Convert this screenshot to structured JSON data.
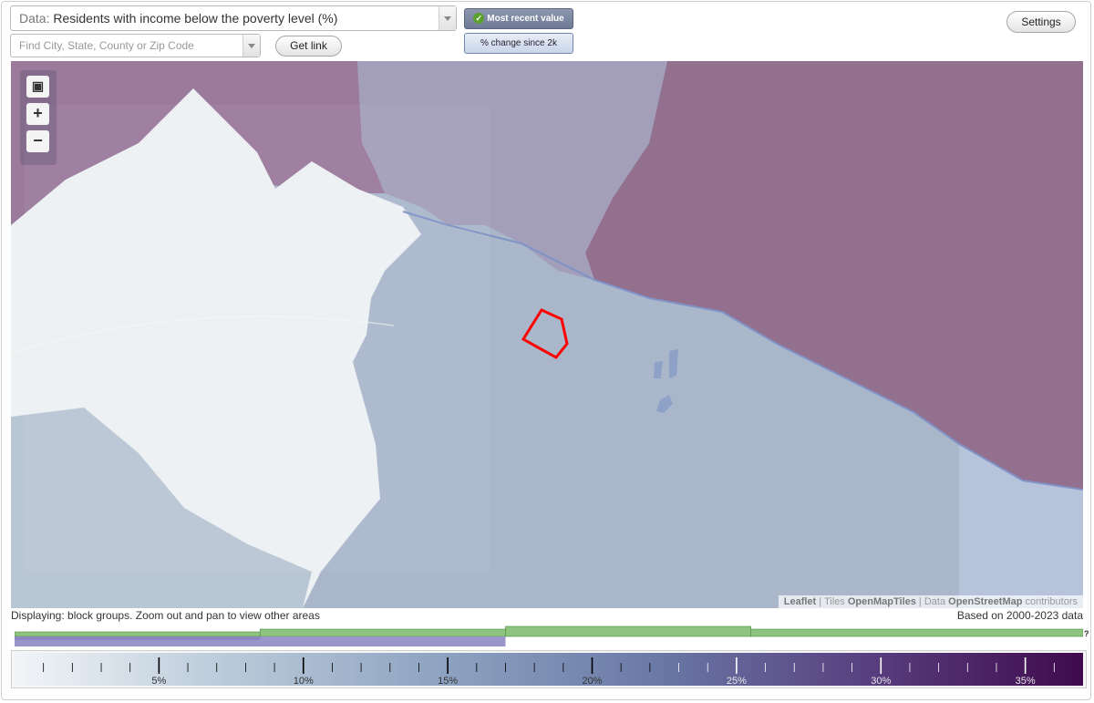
{
  "header": {
    "data_prefix": "Data:",
    "data_value": "Residents with income below the poverty level (%)",
    "search_placeholder": "Find City, State, County or Zip Code",
    "get_link": "Get link",
    "settings": "Settings",
    "toggle_recent": "Most recent value",
    "toggle_change": "% change since 2k"
  },
  "map": {
    "attribution": {
      "leaflet": "Leaflet",
      "tiles_prefix": "Tiles",
      "tiles_name": "OpenMapTiles",
      "data_prefix": "Data",
      "data_name": "OpenStreetMap",
      "data_suffix": "contributors"
    },
    "colors": {
      "light": "#eef1f3",
      "mid": "#aab7cb",
      "purple": "#9b82a3",
      "deep_purple": "#94708f",
      "highlight": "#ff0000"
    },
    "zoom_controls": [
      "fullscreen-icon",
      "plus-icon",
      "minus-icon"
    ]
  },
  "status": {
    "left": "Displaying: block groups. Zoom out and pan to view other areas",
    "right": "Based on 2000-2023 data",
    "help": "?"
  },
  "legend": {
    "min": 0,
    "max": 37,
    "major_ticks": [
      5,
      10,
      15,
      20,
      25,
      30,
      35
    ],
    "labels": [
      "5%",
      "10%",
      "15%",
      "20%",
      "25%",
      "30%",
      "35%"
    ],
    "gradient": [
      "#f2f5f8",
      "#b9cad9",
      "#8ea3c1",
      "#6a79a6",
      "#583f7f",
      "#3f0a4d"
    ]
  },
  "histogram": {
    "green_color": "#8ec47f",
    "purple_color": "#9b96c9",
    "green_steps": [
      [
        0,
        8.5
      ],
      [
        8.5,
        17
      ],
      [
        17,
        25.5
      ],
      [
        25.5,
        37
      ]
    ],
    "green_levels": [
      1,
      2,
      3,
      2
    ],
    "purple_range": [
      0,
      17
    ]
  }
}
